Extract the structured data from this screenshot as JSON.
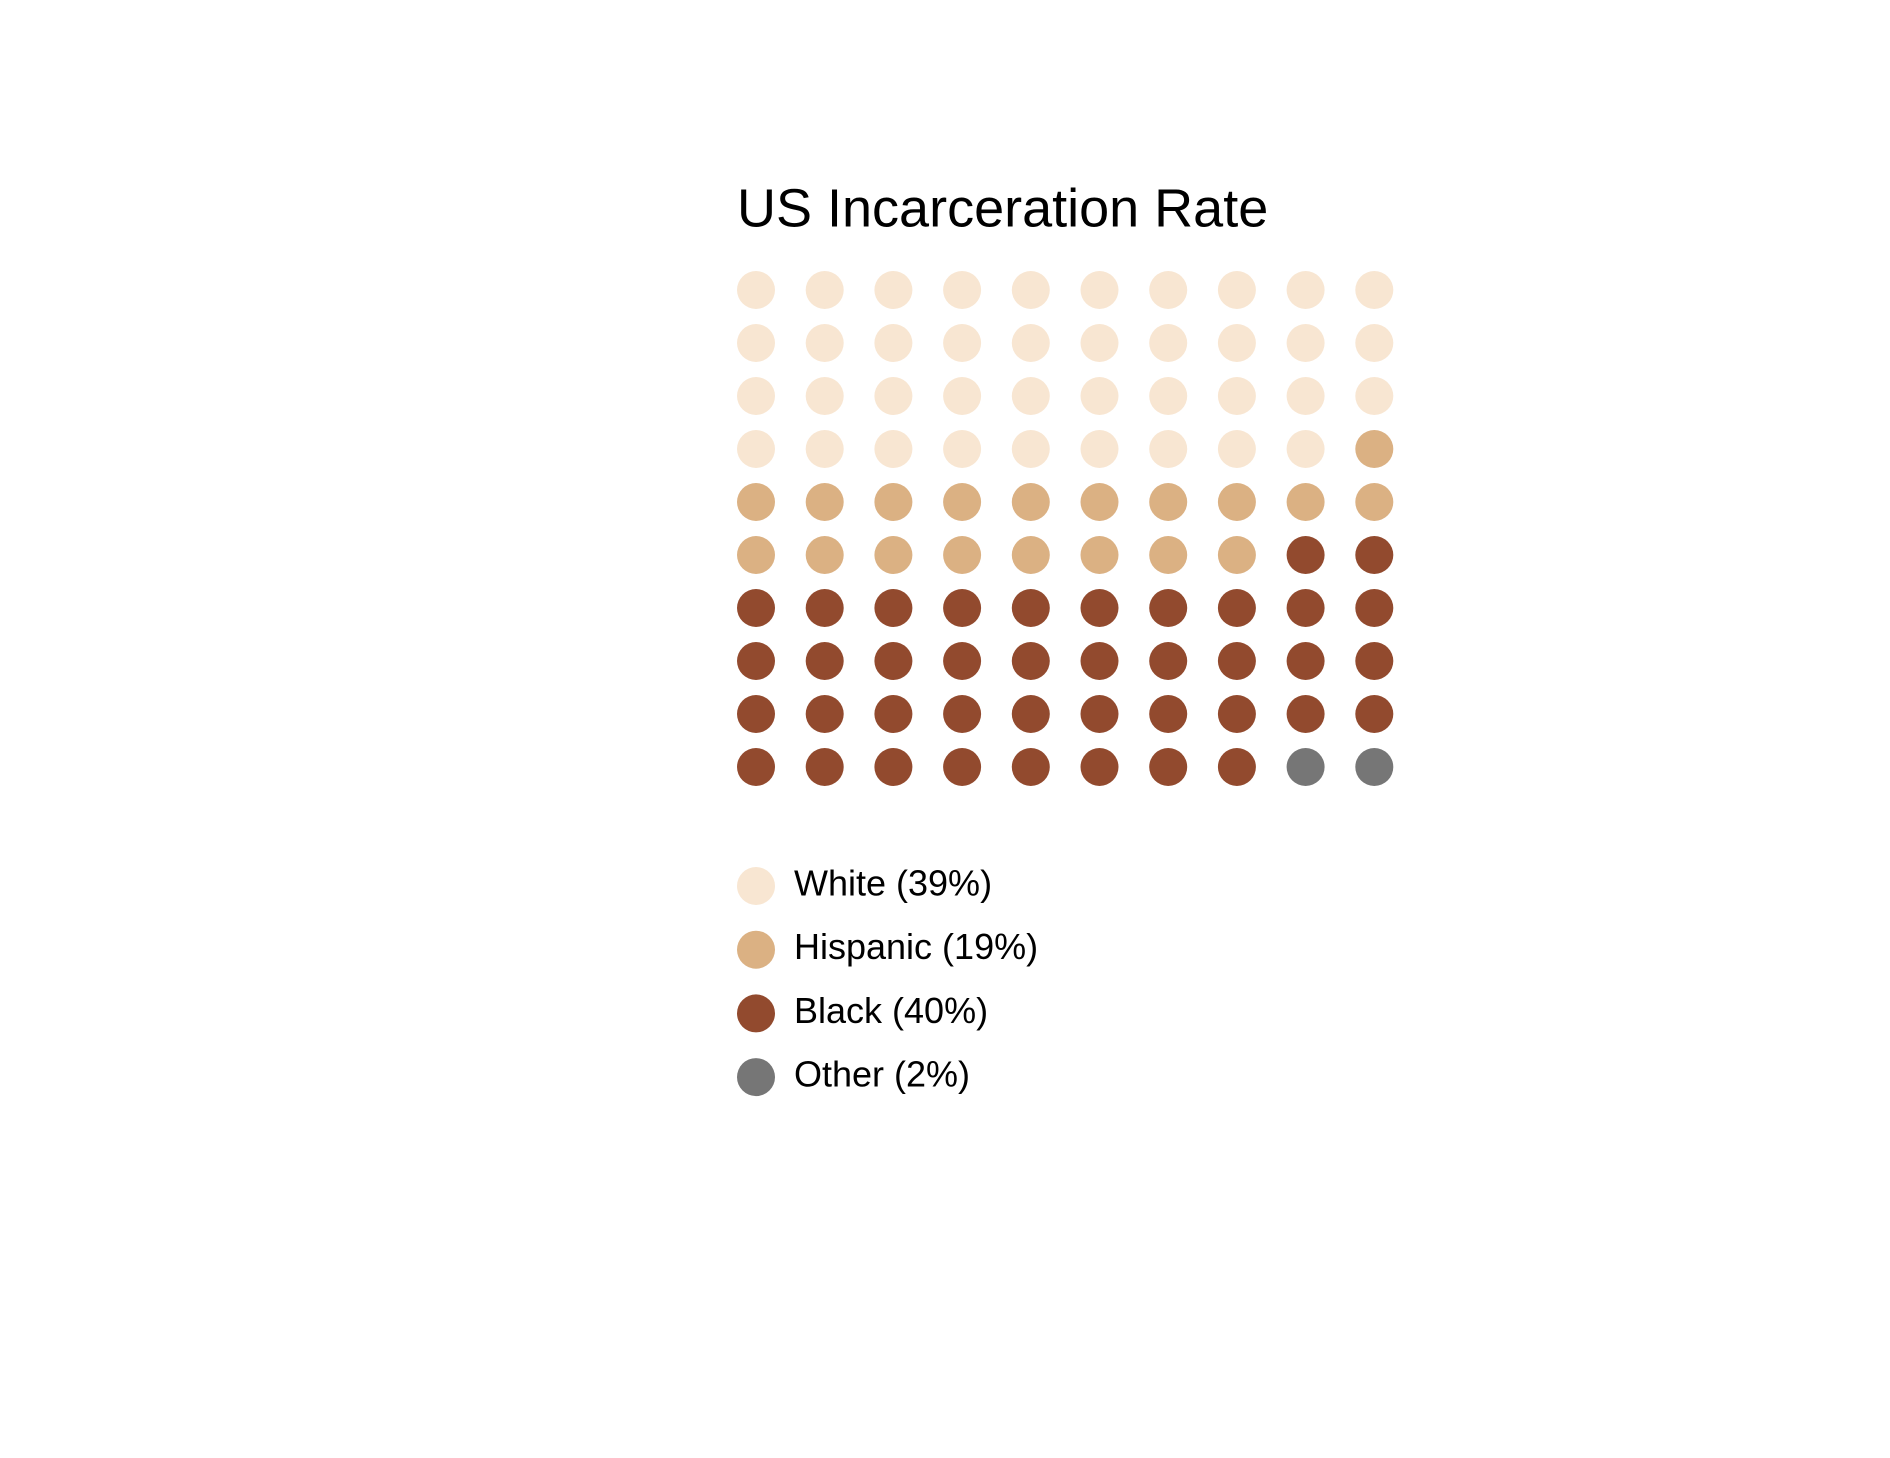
{
  "chart_data": {
    "type": "waffle",
    "title": "US Incarceration Rate",
    "values": [
      39,
      19,
      40,
      2
    ],
    "value_labels": [
      "White (39%)",
      "Hispanic (19%)",
      "Black (40%)",
      "Other (2%)"
    ],
    "colors": [
      "#f8e6d2",
      "#dbb183",
      "#924a2e",
      "#767676"
    ]
  }
}
